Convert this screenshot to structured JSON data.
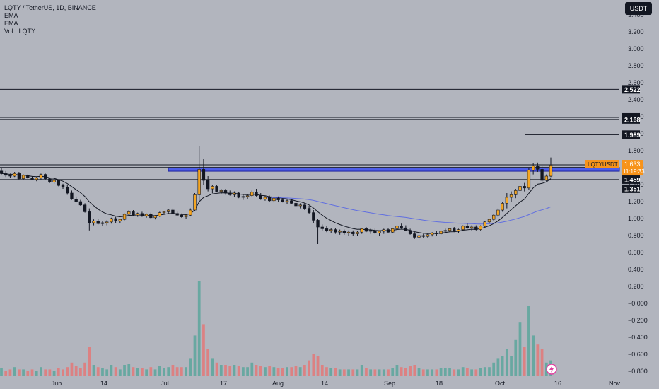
{
  "header": {
    "symbol_line": "LQTY / TetherUS, 1D, BINANCE",
    "indicators": [
      "EMA",
      "EMA",
      "Vol · LQTY"
    ],
    "currency_button": "USDT"
  },
  "colors": {
    "background": "#b2b5be",
    "up": "#f5a623",
    "down": "#131722",
    "vol_up": "#5fa69d",
    "vol_down": "#e07b7b",
    "zone": "#3d50f0",
    "price_tag": "#f7931a"
  },
  "chart_data": {
    "type": "candlestick",
    "y_axis_ticks": [
      "3.400",
      "3.200",
      "3.000",
      "2.800",
      "2.600",
      "2.400",
      "2.200",
      "2.000",
      "1.800",
      "1.600",
      "1.400",
      "1.200",
      "1.000",
      "0.800",
      "0.600",
      "0.400",
      "0.200",
      "−0.000",
      "−0.200",
      "−0.400",
      "−0.600",
      "−0.800"
    ],
    "x_axis_ticks": [
      "Jun",
      "14",
      "Jul",
      "17",
      "Aug",
      "14",
      "Sep",
      "18",
      "Oct",
      "16",
      "Nov"
    ],
    "horizontal_levels": [
      {
        "price": 2.522,
        "label": "2.522"
      },
      {
        "price": 2.192,
        "label": "2.192"
      },
      {
        "price": 2.168,
        "label": "2.168"
      },
      {
        "price": 1.989,
        "label": "1.989"
      },
      {
        "price": 1.633,
        "label": ""
      }
    ],
    "zone": {
      "top": 1.602,
      "bottom": 1.558,
      "labels": [
        "1.602",
        "1.558"
      ]
    },
    "zone_lines": [
      {
        "price": 1.459,
        "label": "1.459"
      }
    ],
    "ema_label": {
      "price": 1.351,
      "label": "1.351"
    },
    "current_price": {
      "symbol": "LQTYUSDT",
      "price": "1.633",
      "countdown": "11:19:33"
    },
    "candles": [
      [
        1.56,
        1.6,
        1.52,
        1.53
      ],
      [
        1.53,
        1.56,
        1.49,
        1.51
      ],
      [
        1.51,
        1.53,
        1.48,
        1.5
      ],
      [
        1.5,
        1.55,
        1.49,
        1.53
      ],
      [
        1.53,
        1.55,
        1.45,
        1.47
      ],
      [
        1.47,
        1.52,
        1.45,
        1.51
      ],
      [
        1.51,
        1.52,
        1.47,
        1.48
      ],
      [
        1.48,
        1.5,
        1.45,
        1.46
      ],
      [
        1.46,
        1.49,
        1.44,
        1.48
      ],
      [
        1.48,
        1.53,
        1.46,
        1.52
      ],
      [
        1.52,
        1.53,
        1.46,
        1.47
      ],
      [
        1.47,
        1.48,
        1.42,
        1.43
      ],
      [
        1.43,
        1.46,
        1.41,
        1.45
      ],
      [
        1.45,
        1.46,
        1.38,
        1.39
      ],
      [
        1.39,
        1.41,
        1.35,
        1.37
      ],
      [
        1.37,
        1.4,
        1.28,
        1.3
      ],
      [
        1.3,
        1.33,
        1.22,
        1.23
      ],
      [
        1.23,
        1.26,
        1.19,
        1.2
      ],
      [
        1.2,
        1.22,
        1.15,
        1.16
      ],
      [
        1.16,
        1.18,
        1.07,
        1.08
      ],
      [
        1.08,
        1.12,
        0.86,
        0.95
      ],
      [
        0.95,
        0.99,
        0.92,
        0.97
      ],
      [
        0.97,
        1.0,
        0.93,
        0.94
      ],
      [
        0.94,
        0.97,
        0.91,
        0.95
      ],
      [
        0.95,
        0.98,
        0.92,
        0.96
      ],
      [
        0.96,
        1.01,
        0.94,
        1.0
      ],
      [
        1.0,
        1.02,
        0.95,
        0.97
      ],
      [
        0.97,
        1.0,
        0.95,
        0.99
      ],
      [
        0.99,
        1.06,
        0.98,
        1.05
      ],
      [
        1.05,
        1.1,
        1.03,
        1.08
      ],
      [
        1.08,
        1.1,
        1.03,
        1.04
      ],
      [
        1.04,
        1.07,
        1.02,
        1.06
      ],
      [
        1.06,
        1.08,
        1.02,
        1.03
      ],
      [
        1.03,
        1.06,
        1.01,
        1.05
      ],
      [
        1.05,
        1.07,
        1.0,
        1.01
      ],
      [
        1.01,
        1.04,
        0.99,
        1.03
      ],
      [
        1.03,
        1.08,
        1.02,
        1.07
      ],
      [
        1.07,
        1.09,
        1.05,
        1.08
      ],
      [
        1.08,
        1.11,
        1.06,
        1.1
      ],
      [
        1.1,
        1.12,
        1.05,
        1.06
      ],
      [
        1.06,
        1.08,
        1.03,
        1.04
      ],
      [
        1.04,
        1.06,
        1.01,
        1.02
      ],
      [
        1.02,
        1.05,
        1.0,
        1.04
      ],
      [
        1.04,
        1.12,
        1.03,
        1.1
      ],
      [
        1.1,
        1.3,
        1.09,
        1.28
      ],
      [
        1.28,
        1.85,
        1.2,
        1.58
      ],
      [
        1.58,
        1.7,
        1.4,
        1.45
      ],
      [
        1.45,
        1.5,
        1.32,
        1.35
      ],
      [
        1.35,
        1.4,
        1.3,
        1.38
      ],
      [
        1.38,
        1.4,
        1.31,
        1.32
      ],
      [
        1.32,
        1.35,
        1.29,
        1.33
      ],
      [
        1.33,
        1.35,
        1.28,
        1.3
      ],
      [
        1.3,
        1.33,
        1.27,
        1.28
      ],
      [
        1.28,
        1.32,
        1.25,
        1.3
      ],
      [
        1.3,
        1.31,
        1.24,
        1.25
      ],
      [
        1.25,
        1.28,
        1.22,
        1.26
      ],
      [
        1.26,
        1.29,
        1.23,
        1.27
      ],
      [
        1.27,
        1.33,
        1.25,
        1.31
      ],
      [
        1.31,
        1.35,
        1.26,
        1.27
      ],
      [
        1.27,
        1.3,
        1.22,
        1.23
      ],
      [
        1.23,
        1.27,
        1.21,
        1.25
      ],
      [
        1.25,
        1.27,
        1.2,
        1.21
      ],
      [
        1.21,
        1.25,
        1.19,
        1.24
      ],
      [
        1.24,
        1.26,
        1.2,
        1.22
      ],
      [
        1.22,
        1.24,
        1.19,
        1.2
      ],
      [
        1.2,
        1.23,
        1.17,
        1.21
      ],
      [
        1.21,
        1.22,
        1.17,
        1.18
      ],
      [
        1.18,
        1.2,
        1.14,
        1.15
      ],
      [
        1.15,
        1.18,
        1.12,
        1.16
      ],
      [
        1.16,
        1.18,
        1.1,
        1.12
      ],
      [
        1.12,
        1.15,
        1.05,
        1.07
      ],
      [
        1.07,
        1.1,
        0.95,
        0.98
      ],
      [
        0.98,
        1.0,
        0.7,
        0.9
      ],
      [
        0.9,
        0.93,
        0.86,
        0.88
      ],
      [
        0.88,
        0.91,
        0.84,
        0.86
      ],
      [
        0.86,
        0.89,
        0.83,
        0.87
      ],
      [
        0.87,
        0.89,
        0.82,
        0.84
      ],
      [
        0.84,
        0.87,
        0.81,
        0.85
      ],
      [
        0.85,
        0.87,
        0.81,
        0.83
      ],
      [
        0.83,
        0.86,
        0.8,
        0.84
      ],
      [
        0.84,
        0.86,
        0.8,
        0.82
      ],
      [
        0.82,
        0.85,
        0.8,
        0.84
      ],
      [
        0.84,
        0.89,
        0.82,
        0.88
      ],
      [
        0.88,
        0.9,
        0.84,
        0.85
      ],
      [
        0.85,
        0.88,
        0.82,
        0.86
      ],
      [
        0.86,
        0.88,
        0.82,
        0.83
      ],
      [
        0.83,
        0.86,
        0.8,
        0.85
      ],
      [
        0.85,
        0.88,
        0.82,
        0.87
      ],
      [
        0.87,
        0.89,
        0.83,
        0.84
      ],
      [
        0.84,
        0.89,
        0.83,
        0.88
      ],
      [
        0.88,
        0.92,
        0.86,
        0.91
      ],
      [
        0.91,
        0.94,
        0.88,
        0.89
      ],
      [
        0.89,
        0.92,
        0.85,
        0.86
      ],
      [
        0.86,
        0.88,
        0.81,
        0.82
      ],
      [
        0.82,
        0.84,
        0.76,
        0.78
      ],
      [
        0.78,
        0.81,
        0.75,
        0.8
      ],
      [
        0.8,
        0.82,
        0.77,
        0.79
      ],
      [
        0.79,
        0.82,
        0.77,
        0.81
      ],
      [
        0.81,
        0.84,
        0.79,
        0.83
      ],
      [
        0.83,
        0.85,
        0.8,
        0.82
      ],
      [
        0.82,
        0.86,
        0.81,
        0.85
      ],
      [
        0.85,
        0.88,
        0.83,
        0.86
      ],
      [
        0.86,
        0.89,
        0.84,
        0.88
      ],
      [
        0.88,
        0.9,
        0.84,
        0.85
      ],
      [
        0.85,
        0.88,
        0.83,
        0.87
      ],
      [
        0.87,
        0.92,
        0.86,
        0.91
      ],
      [
        0.91,
        0.94,
        0.88,
        0.89
      ],
      [
        0.89,
        0.92,
        0.86,
        0.9
      ],
      [
        0.9,
        0.92,
        0.86,
        0.87
      ],
      [
        0.87,
        0.92,
        0.86,
        0.91
      ],
      [
        0.91,
        0.97,
        0.9,
        0.96
      ],
      [
        0.96,
        1.0,
        0.94,
        0.99
      ],
      [
        0.99,
        1.05,
        0.97,
        1.04
      ],
      [
        1.04,
        1.12,
        1.02,
        1.1
      ],
      [
        1.1,
        1.2,
        1.08,
        1.18
      ],
      [
        1.18,
        1.3,
        1.12,
        1.25
      ],
      [
        1.25,
        1.32,
        1.2,
        1.28
      ],
      [
        1.28,
        1.35,
        1.24,
        1.33
      ],
      [
        1.33,
        1.4,
        1.28,
        1.38
      ],
      [
        1.38,
        1.42,
        1.32,
        1.36
      ],
      [
        1.36,
        1.6,
        1.34,
        1.57
      ],
      [
        1.57,
        1.65,
        1.52,
        1.62
      ],
      [
        1.62,
        1.66,
        1.55,
        1.58
      ],
      [
        1.58,
        1.62,
        1.42,
        1.45
      ],
      [
        1.45,
        1.52,
        1.43,
        1.5
      ],
      [
        1.5,
        1.72,
        1.49,
        1.63
      ]
    ],
    "volumes": [
      [
        0.35,
        1
      ],
      [
        0.25,
        0
      ],
      [
        0.3,
        0
      ],
      [
        0.4,
        1
      ],
      [
        0.3,
        0
      ],
      [
        0.3,
        1
      ],
      [
        0.25,
        0
      ],
      [
        0.3,
        0
      ],
      [
        0.25,
        1
      ],
      [
        0.4,
        1
      ],
      [
        0.3,
        0
      ],
      [
        0.3,
        0
      ],
      [
        0.25,
        1
      ],
      [
        0.35,
        0
      ],
      [
        0.3,
        0
      ],
      [
        0.4,
        0
      ],
      [
        0.6,
        0
      ],
      [
        0.45,
        0
      ],
      [
        0.35,
        0
      ],
      [
        0.6,
        0
      ],
      [
        1.3,
        0
      ],
      [
        0.5,
        1
      ],
      [
        0.4,
        0
      ],
      [
        0.35,
        1
      ],
      [
        0.3,
        1
      ],
      [
        0.5,
        1
      ],
      [
        0.4,
        0
      ],
      [
        0.3,
        1
      ],
      [
        0.5,
        1
      ],
      [
        0.55,
        1
      ],
      [
        0.4,
        0
      ],
      [
        0.35,
        1
      ],
      [
        0.35,
        0
      ],
      [
        0.3,
        1
      ],
      [
        0.4,
        0
      ],
      [
        0.3,
        1
      ],
      [
        0.45,
        1
      ],
      [
        0.35,
        1
      ],
      [
        0.4,
        1
      ],
      [
        0.5,
        0
      ],
      [
        0.4,
        0
      ],
      [
        0.4,
        0
      ],
      [
        0.4,
        1
      ],
      [
        0.8,
        1
      ],
      [
        1.8,
        1
      ],
      [
        4.2,
        1
      ],
      [
        2.3,
        0
      ],
      [
        1.2,
        0
      ],
      [
        0.8,
        1
      ],
      [
        0.6,
        0
      ],
      [
        0.5,
        1
      ],
      [
        0.5,
        0
      ],
      [
        0.45,
        0
      ],
      [
        0.5,
        1
      ],
      [
        0.45,
        0
      ],
      [
        0.4,
        1
      ],
      [
        0.4,
        1
      ],
      [
        0.6,
        1
      ],
      [
        0.5,
        0
      ],
      [
        0.45,
        0
      ],
      [
        0.4,
        1
      ],
      [
        0.45,
        0
      ],
      [
        0.4,
        1
      ],
      [
        0.35,
        0
      ],
      [
        0.35,
        0
      ],
      [
        0.4,
        1
      ],
      [
        0.4,
        0
      ],
      [
        0.45,
        0
      ],
      [
        0.4,
        1
      ],
      [
        0.5,
        0
      ],
      [
        0.7,
        0
      ],
      [
        1.0,
        0
      ],
      [
        0.9,
        0
      ],
      [
        0.5,
        0
      ],
      [
        0.4,
        0
      ],
      [
        0.35,
        1
      ],
      [
        0.35,
        0
      ],
      [
        0.3,
        1
      ],
      [
        0.3,
        0
      ],
      [
        0.3,
        1
      ],
      [
        0.3,
        0
      ],
      [
        0.3,
        1
      ],
      [
        0.5,
        1
      ],
      [
        0.35,
        0
      ],
      [
        0.3,
        1
      ],
      [
        0.3,
        0
      ],
      [
        0.3,
        1
      ],
      [
        0.3,
        1
      ],
      [
        0.3,
        0
      ],
      [
        0.35,
        1
      ],
      [
        0.5,
        1
      ],
      [
        0.4,
        0
      ],
      [
        0.35,
        0
      ],
      [
        0.45,
        0
      ],
      [
        0.5,
        0
      ],
      [
        0.35,
        1
      ],
      [
        0.3,
        0
      ],
      [
        0.3,
        1
      ],
      [
        0.3,
        1
      ],
      [
        0.3,
        0
      ],
      [
        0.35,
        1
      ],
      [
        0.35,
        1
      ],
      [
        0.35,
        1
      ],
      [
        0.3,
        0
      ],
      [
        0.3,
        1
      ],
      [
        0.4,
        1
      ],
      [
        0.35,
        0
      ],
      [
        0.3,
        1
      ],
      [
        0.3,
        0
      ],
      [
        0.35,
        1
      ],
      [
        0.4,
        1
      ],
      [
        0.4,
        1
      ],
      [
        0.6,
        1
      ],
      [
        0.8,
        1
      ],
      [
        0.9,
        1
      ],
      [
        1.2,
        1
      ],
      [
        0.9,
        1
      ],
      [
        1.6,
        1
      ],
      [
        2.4,
        1
      ],
      [
        1.3,
        0
      ],
      [
        3.1,
        1
      ],
      [
        1.8,
        1
      ],
      [
        1.4,
        0
      ],
      [
        1.2,
        0
      ],
      [
        0.6,
        1
      ],
      [
        0.7,
        1
      ]
    ]
  },
  "footer": {
    "logo_icon": "tradingview-lightning-icon"
  }
}
